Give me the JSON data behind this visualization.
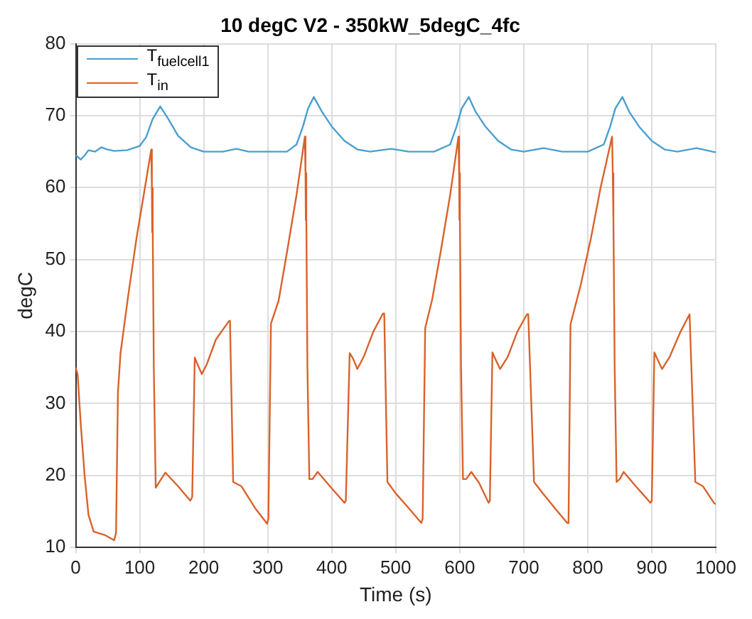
{
  "chart_data": {
    "type": "line",
    "title": "10 degC V2 - 350kW_5degC_4fc",
    "xlabel": "Time (s)",
    "ylabel": "degC",
    "xlim": [
      0,
      1000
    ],
    "xticks": [
      0,
      100,
      200,
      300,
      400,
      500,
      600,
      700,
      800,
      900,
      1000
    ],
    "ylim": [
      10,
      80
    ],
    "yticks": [
      10,
      20,
      30,
      40,
      50,
      60,
      70,
      80
    ],
    "grid": true,
    "legend": "top left",
    "marker": "none",
    "line_style": "solid",
    "series": [
      {
        "name": "T$_{fuelcell1}$",
        "color": "#4a9fd0",
        "x": [
          0,
          4,
          8,
          14,
          20,
          30,
          40,
          50,
          60,
          80,
          100,
          110,
          120,
          132,
          145,
          160,
          180,
          200,
          230,
          251,
          270,
          300,
          330,
          345,
          355,
          363,
          372,
          385,
          400,
          420,
          440,
          460,
          493,
          520,
          560,
          585,
          595,
          603,
          614,
          625,
          640,
          660,
          680,
          700,
          731,
          760,
          800,
          825,
          835,
          843,
          854,
          865,
          880,
          900,
          920,
          940,
          970,
          990,
          1000
        ],
        "values": [
          64.5,
          64.2,
          63.9,
          64.5,
          65.2,
          65,
          65.6,
          65.3,
          65.1,
          65.2,
          65.8,
          67,
          69.5,
          71.3,
          69.5,
          67.2,
          65.6,
          65,
          65,
          65.4,
          65,
          65,
          65,
          66,
          68.5,
          71,
          72.6,
          70.5,
          68.5,
          66.5,
          65.3,
          65,
          65.4,
          65,
          65,
          66,
          68.5,
          71,
          72.6,
          70.5,
          68.5,
          66.5,
          65.3,
          65,
          65.5,
          65,
          65,
          66,
          68.5,
          71,
          72.6,
          70.5,
          68.5,
          66.5,
          65.3,
          65,
          65.5,
          65.1,
          64.9
        ]
      },
      {
        "name": "T$_{in}$",
        "color": "#d9622b",
        "x": [
          0,
          3,
          8,
          14,
          20,
          28,
          46,
          60,
          63,
          66,
          70,
          82,
          95,
          110,
          118,
          119,
          119.5,
          120,
          120.5,
          122,
          125,
          130,
          140,
          160,
          179,
          182,
          186,
          190,
          197,
          205,
          219,
          239,
          241,
          246,
          259,
          280,
          299,
          301,
          305,
          317,
          330,
          345,
          358,
          359,
          359.5,
          360,
          360.5,
          362,
          365,
          370,
          378,
          400,
          420,
          422,
          428,
          433,
          440,
          450,
          465,
          480,
          482,
          487,
          500,
          520,
          540,
          542,
          546,
          557,
          570,
          585,
          598,
          599,
          599.5,
          600,
          600.5,
          602,
          605,
          610,
          618,
          630,
          645,
          647,
          651,
          655,
          663,
          675,
          690,
          705,
          707,
          716,
          730,
          750,
          768,
          770,
          773,
          789,
          805,
          820,
          838,
          839,
          839.5,
          840,
          840.5,
          842,
          845,
          850,
          856,
          875,
          898,
          900,
          904,
          908,
          916,
          928,
          945,
          959,
          961,
          968,
          980,
          997,
          1000
        ],
        "values": [
          35,
          34,
          27,
          19.9,
          14.5,
          12.2,
          11.7,
          11,
          12,
          31.6,
          37,
          45,
          53,
          61,
          65.3,
          60,
          53.8,
          60,
          55,
          35,
          18.3,
          19,
          20.4,
          18.5,
          16.5,
          17,
          36.4,
          35.5,
          34.1,
          35.5,
          38.9,
          41.4,
          41.5,
          19.1,
          18.5,
          15.5,
          13.3,
          14,
          41.1,
          44.3,
          51,
          59,
          67.1,
          62,
          55.5,
          62,
          56,
          35,
          19.5,
          19.5,
          20.5,
          18.2,
          16.2,
          16.5,
          37,
          36.3,
          34.8,
          36.5,
          40,
          42.5,
          42.5,
          19.1,
          17.5,
          15.5,
          13.4,
          14,
          40.5,
          44.5,
          51,
          59,
          67.1,
          62,
          55.5,
          62,
          56,
          35,
          19.5,
          19.5,
          20.5,
          19,
          16.2,
          16.5,
          37.1,
          36.3,
          34.8,
          36.5,
          40,
          42.4,
          42.4,
          19.1,
          17.5,
          15.3,
          13.4,
          14,
          41,
          46.5,
          53,
          60,
          67.1,
          62,
          55.5,
          62,
          56,
          35,
          19.1,
          19.5,
          20.5,
          18.5,
          16.2,
          16.5,
          37.1,
          36.3,
          34.8,
          36.5,
          40,
          42.4,
          42.4,
          19.1,
          18.5,
          16.2,
          16
        ]
      }
    ]
  }
}
